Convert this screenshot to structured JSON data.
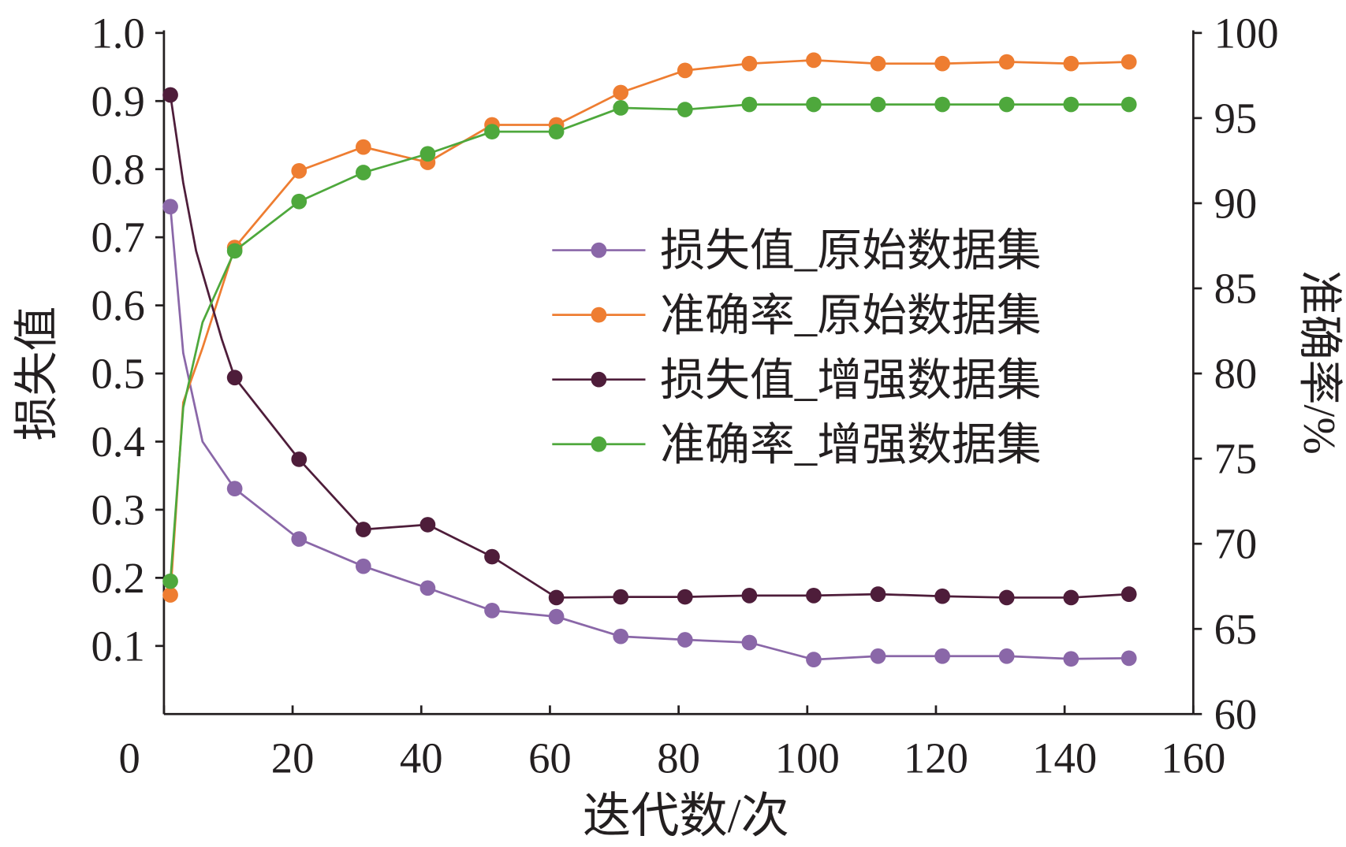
{
  "chart_data": {
    "type": "line",
    "xlabel": "迭代数/次",
    "ylabel_left": "损失值",
    "ylabel_right": "准确率/%",
    "xlim": [
      0,
      160
    ],
    "ylim_left": [
      0,
      1.0
    ],
    "ylim_right": [
      60,
      100
    ],
    "x_ticks": [
      "0",
      "20",
      "40",
      "60",
      "80",
      "100",
      "120",
      "140",
      "160"
    ],
    "y_left_ticks": [
      "0.1",
      "0.2",
      "0.3",
      "0.4",
      "0.5",
      "0.6",
      "0.7",
      "0.8",
      "0.9",
      "1.0"
    ],
    "y_right_ticks": [
      "60",
      "65",
      "70",
      "75",
      "80",
      "85",
      "90",
      "95",
      "100"
    ],
    "grid": false,
    "legend_position": "center-right",
    "marker_x": [
      1,
      11,
      21,
      31,
      41,
      51,
      61,
      71,
      81,
      91,
      101,
      111,
      121,
      131,
      141,
      150
    ],
    "series": [
      {
        "name": "损失值_原始数据集",
        "axis": "left",
        "color": "#8a67a8",
        "x": [
          1,
          3,
          6,
          11,
          21,
          31,
          41,
          51,
          61,
          71,
          81,
          91,
          101,
          111,
          121,
          131,
          141,
          150
        ],
        "values": [
          0.745,
          0.53,
          0.4,
          0.331,
          0.257,
          0.217,
          0.185,
          0.152,
          0.143,
          0.114,
          0.109,
          0.105,
          0.08,
          0.085,
          0.085,
          0.085,
          0.081,
          0.082
        ]
      },
      {
        "name": "准确率_原始数据集",
        "axis": "right",
        "color": "#ee7d31",
        "x": [
          1,
          3,
          6,
          11,
          21,
          31,
          41,
          51,
          61,
          71,
          81,
          91,
          101,
          111,
          121,
          131,
          141,
          150
        ],
        "values": [
          67.0,
          78.3,
          81.5,
          87.4,
          91.9,
          93.3,
          92.4,
          94.6,
          94.6,
          96.5,
          97.8,
          98.2,
          98.4,
          98.2,
          98.2,
          98.3,
          98.2,
          98.3
        ]
      },
      {
        "name": "损失值_增强数据集",
        "axis": "left",
        "color": "#4e1d3a",
        "x": [
          1,
          3,
          5,
          9,
          11,
          21,
          31,
          41,
          51,
          61,
          71,
          81,
          91,
          101,
          111,
          121,
          131,
          141,
          150
        ],
        "values": [
          0.909,
          0.78,
          0.68,
          0.55,
          0.494,
          0.374,
          0.271,
          0.278,
          0.231,
          0.171,
          0.172,
          0.172,
          0.174,
          0.174,
          0.176,
          0.173,
          0.171,
          0.171,
          0.176
        ]
      },
      {
        "name": "准确率_增强数据集",
        "axis": "right",
        "color": "#4ea83c",
        "x": [
          1,
          3,
          6,
          11,
          21,
          31,
          41,
          51,
          61,
          71,
          81,
          91,
          101,
          111,
          121,
          131,
          141,
          150
        ],
        "values": [
          67.8,
          78.0,
          83.0,
          87.2,
          90.1,
          91.8,
          92.9,
          94.2,
          94.2,
          95.6,
          95.5,
          95.8,
          95.8,
          95.8,
          95.8,
          95.8,
          95.8,
          95.8
        ]
      }
    ]
  }
}
